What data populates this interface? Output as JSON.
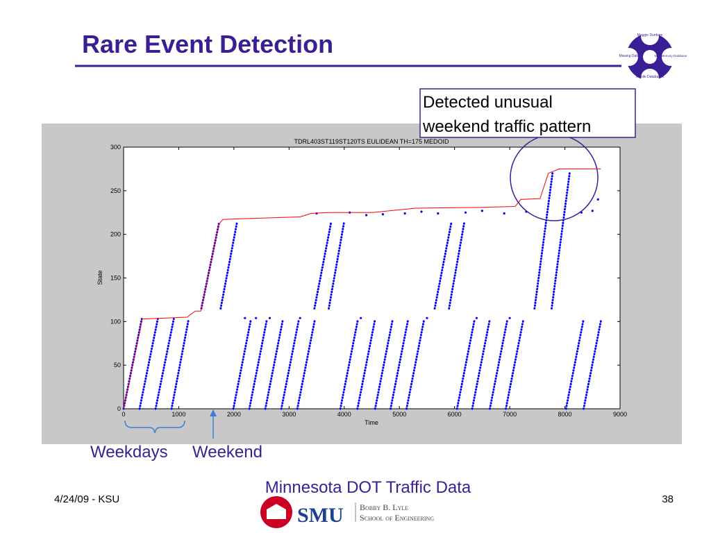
{
  "slide": {
    "title": "Rare Event Detection",
    "callout": "Detected unusual weekend traffic pattern",
    "weekdays": "Weekdays",
    "weekend": "Weekend",
    "caption": "Minnesota DOT Traffic Data",
    "date": "4/24/09 - KSU",
    "page": "38",
    "logo": {
      "center": "Maggie Dunham",
      "left": "Missing Data",
      "right": "MainMemory Database",
      "bottom": "Mobile Databases"
    },
    "school": {
      "name": "SMU",
      "line1": "Bobby B. Lyle",
      "line2": "School of Engineering"
    }
  },
  "chart_data": {
    "type": "scatter",
    "title": "TDRL403ST119ST120TS EULIDEAN TH=175 MEDOID",
    "xlabel": "Time",
    "ylabel": "State",
    "xlim": [
      0,
      9000
    ],
    "xticks": [
      0,
      1000,
      2000,
      3000,
      4000,
      5000,
      6000,
      7000,
      8000,
      9000
    ],
    "ylim": [
      0,
      300
    ],
    "yticks": [
      0,
      50,
      100,
      150,
      200,
      250,
      300
    ],
    "series": [
      {
        "color": "#0000ff",
        "style": "dotted-line",
        "x": [
          0,
          330,
          null,
          290,
          620,
          null,
          580,
          910,
          null,
          870,
          1180,
          null,
          1990,
          2310,
          null,
          2280,
          2600,
          null,
          2570,
          2890,
          null,
          2860,
          3180,
          null,
          3150,
          3470,
          null,
          3930,
          4250,
          null,
          4240,
          4560,
          null,
          4560,
          4880,
          null,
          4840,
          5160,
          null,
          5130,
          5450,
          null,
          6045,
          6365,
          null,
          6320,
          6640,
          null,
          6640,
          6960,
          null,
          6930,
          7250,
          null,
          8020,
          8340,
          null,
          8340,
          8660,
          null,
          1410,
          1730,
          null,
          1760,
          2060,
          null,
          3460,
          3760,
          null,
          3720,
          4000,
          null,
          5640,
          5940,
          null,
          5900,
          6180,
          null,
          7450,
          7780,
          null,
          7760,
          8090
        ],
        "values": [
          0,
          103,
          null,
          0,
          103,
          null,
          0,
          103,
          null,
          0,
          103,
          null,
          0,
          103,
          null,
          0,
          103,
          null,
          0,
          103,
          null,
          0,
          103,
          null,
          0,
          103,
          null,
          0,
          103,
          null,
          0,
          103,
          null,
          0,
          103,
          null,
          0,
          103,
          null,
          0,
          103,
          null,
          0,
          103,
          null,
          0,
          103,
          null,
          0,
          103,
          null,
          0,
          103,
          null,
          0,
          103,
          null,
          0,
          103,
          null,
          115,
          213,
          null,
          115,
          215,
          null,
          115,
          213,
          null,
          115,
          215,
          null,
          115,
          213,
          null,
          115,
          215,
          null,
          115,
          272,
          null,
          115,
          272
        ]
      },
      {
        "color": "#0000ff",
        "style": "dots",
        "x": [
          2200,
          2400,
          3500,
          4100,
          4400,
          4700,
          5100,
          5400,
          5700,
          6200,
          6500,
          6900,
          7300,
          8300,
          8500,
          8600,
          2650,
          3200,
          4300,
          5500,
          6400,
          7000
        ],
        "values": [
          104,
          104,
          224,
          225,
          222,
          223,
          224,
          226,
          224,
          225,
          227,
          224,
          226,
          225,
          227,
          240,
          104,
          104,
          104,
          104,
          104,
          104
        ]
      },
      {
        "color": "#ff0000",
        "style": "line",
        "x": [
          0,
          340,
          1150,
          1300,
          1400,
          1730,
          1800,
          2200,
          3200,
          3400,
          3700,
          4500,
          5300,
          6500,
          7100,
          7200,
          7550,
          7700,
          7900,
          8650
        ],
        "values": [
          0,
          103,
          105,
          112,
          112,
          212,
          217,
          218,
          220,
          224,
          225,
          225,
          230,
          231,
          232,
          240,
          241,
          270,
          275,
          275
        ]
      }
    ]
  }
}
